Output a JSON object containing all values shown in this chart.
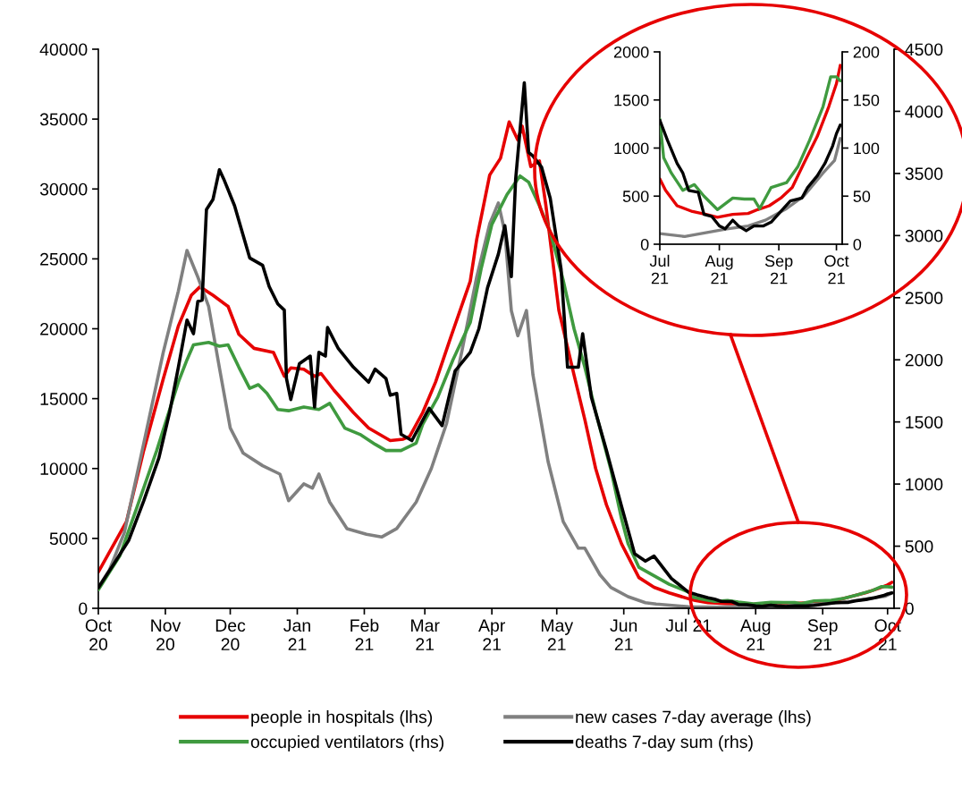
{
  "chart_data": [
    {
      "type": "line",
      "legend": "bottom",
      "xlim": [
        "2020-10-01",
        "2021-10-04"
      ],
      "xticks": [
        {
          "value": "2020-10-01",
          "label": "Oct\n20"
        },
        {
          "value": "2020-11-01",
          "label": "Nov\n20"
        },
        {
          "value": "2020-12-01",
          "label": "Dec\n20"
        },
        {
          "value": "2021-01-01",
          "label": "Jan\n21"
        },
        {
          "value": "2021-02-01",
          "label": "Feb\n21"
        },
        {
          "value": "2021-03-01",
          "label": "Mar\n21"
        },
        {
          "value": "2021-04-01",
          "label": "Apr\n21"
        },
        {
          "value": "2021-05-01",
          "label": "May\n21"
        },
        {
          "value": "2021-06-01",
          "label": "Jun\n21"
        },
        {
          "value": "2021-07-01",
          "label": "Jul 21"
        },
        {
          "value": "2021-08-01",
          "label": "Aug\n21"
        },
        {
          "value": "2021-09-01",
          "label": "Sep\n21"
        },
        {
          "value": "2021-10-01",
          "label": "Oct\n21"
        }
      ],
      "ylim": [
        0,
        40000
      ],
      "yticks": [
        0,
        5000,
        10000,
        15000,
        20000,
        25000,
        30000,
        35000,
        40000
      ],
      "y2lim": [
        0,
        4500
      ],
      "y2ticks": [
        0,
        500,
        1000,
        1500,
        2000,
        2500,
        3000,
        3500,
        4000,
        4500
      ],
      "series": [
        {
          "name": "people in hospitals (lhs)",
          "color": "#e60000",
          "x": [
            "2020-10-01",
            "2020-10-05",
            "2020-10-14",
            "2020-10-22",
            "2020-10-31",
            "2020-11-07",
            "2020-11-13",
            "2020-11-17",
            "2020-11-23",
            "2020-11-30",
            "2020-12-05",
            "2020-12-12",
            "2020-12-21",
            "2020-12-26",
            "2020-12-29",
            "2021-01-04",
            "2021-01-09",
            "2021-01-12",
            "2021-01-18",
            "2021-01-27",
            "2021-02-03",
            "2021-02-13",
            "2021-02-19",
            "2021-02-22",
            "2021-02-28",
            "2021-03-06",
            "2021-03-13",
            "2021-03-22",
            "2021-03-25",
            "2021-03-31",
            "2021-04-05",
            "2021-04-09",
            "2021-04-13",
            "2021-04-15",
            "2021-04-19",
            "2021-04-23",
            "2021-04-26",
            "2021-05-02",
            "2021-05-09",
            "2021-05-14",
            "2021-05-19",
            "2021-05-24",
            "2021-05-31",
            "2021-06-08",
            "2021-06-15",
            "2021-06-22",
            "2021-07-01",
            "2021-07-04",
            "2021-07-10",
            "2021-07-18",
            "2021-07-25",
            "2021-07-31",
            "2021-08-08",
            "2021-08-16",
            "2021-08-21",
            "2021-08-27",
            "2021-09-02",
            "2021-09-08",
            "2021-09-14",
            "2021-09-21",
            "2021-09-27",
            "2021-10-01",
            "2021-10-03"
          ],
          "values": [
            2600,
            3700,
            6200,
            11300,
            16400,
            20200,
            22400,
            23000,
            22400,
            21600,
            19600,
            18600,
            18300,
            16600,
            17200,
            17100,
            16600,
            16800,
            15600,
            14000,
            12900,
            12000,
            12100,
            12300,
            14000,
            16200,
            19400,
            23400,
            26400,
            31000,
            32200,
            34800,
            33500,
            34500,
            31600,
            32000,
            28800,
            21300,
            16700,
            13500,
            10000,
            7400,
            4600,
            2200,
            1500,
            1100,
            680,
            560,
            400,
            340,
            310,
            280,
            310,
            320,
            360,
            400,
            480,
            590,
            840,
            1120,
            1430,
            1670,
            1860
          ]
        },
        {
          "name": "new cases 7-day average (lhs)",
          "color": "#808080",
          "x": [
            "2020-10-01",
            "2020-10-06",
            "2020-10-13",
            "2020-10-22",
            "2020-10-31",
            "2020-11-07",
            "2020-11-11",
            "2020-11-16",
            "2020-11-21",
            "2020-11-26",
            "2020-12-01",
            "2020-12-07",
            "2020-12-16",
            "2020-12-24",
            "2020-12-28",
            "2021-01-04",
            "2021-01-08",
            "2021-01-11",
            "2021-01-16",
            "2021-01-24",
            "2021-02-02",
            "2021-02-09",
            "2021-02-16",
            "2021-02-25",
            "2021-03-04",
            "2021-03-11",
            "2021-03-18",
            "2021-03-25",
            "2021-03-31",
            "2021-04-04",
            "2021-04-07",
            "2021-04-10",
            "2021-04-13",
            "2021-04-17",
            "2021-04-20",
            "2021-04-27",
            "2021-05-04",
            "2021-05-11",
            "2021-05-14",
            "2021-05-21",
            "2021-05-26",
            "2021-06-03",
            "2021-06-11",
            "2021-06-16",
            "2021-07-01",
            "2021-07-14",
            "2021-07-25",
            "2021-08-05",
            "2021-08-16",
            "2021-08-25",
            "2021-09-05",
            "2021-09-14",
            "2021-09-24",
            "2021-09-30",
            "2021-10-03"
          ],
          "values": [
            1500,
            2700,
            5400,
            11800,
            18300,
            22700,
            25600,
            23700,
            21600,
            17200,
            12900,
            11100,
            10200,
            9600,
            7700,
            8900,
            8600,
            9600,
            7600,
            5700,
            5300,
            5100,
            5700,
            7600,
            10000,
            13200,
            18300,
            23700,
            27500,
            29000,
            26900,
            21300,
            19500,
            21300,
            16700,
            10500,
            6200,
            4300,
            4300,
            2400,
            1500,
            830,
            400,
            300,
            110,
            80,
            120,
            160,
            190,
            250,
            370,
            500,
            740,
            870,
            1100
          ]
        },
        {
          "name": "occupied ventilators (rhs)",
          "color": "#3f9a3f",
          "axis": "y2",
          "x": [
            "2020-10-01",
            "2020-10-11",
            "2020-10-19",
            "2020-10-28",
            "2020-11-03",
            "2020-11-07",
            "2020-11-11",
            "2020-11-14",
            "2020-11-21",
            "2020-11-26",
            "2020-11-30",
            "2020-12-05",
            "2020-12-10",
            "2020-12-14",
            "2020-12-18",
            "2020-12-23",
            "2020-12-28",
            "2021-01-04",
            "2021-01-11",
            "2021-01-16",
            "2021-01-23",
            "2021-01-30",
            "2021-02-06",
            "2021-02-11",
            "2021-02-18",
            "2021-02-25",
            "2021-02-28",
            "2021-03-07",
            "2021-03-14",
            "2021-03-22",
            "2021-03-27",
            "2021-04-01",
            "2021-04-08",
            "2021-04-14",
            "2021-04-18",
            "2021-04-23",
            "2021-04-28",
            "2021-05-04",
            "2021-05-09",
            "2021-05-14",
            "2021-05-19",
            "2021-05-26",
            "2021-05-31",
            "2021-06-03",
            "2021-06-08",
            "2021-06-22",
            "2021-07-01",
            "2021-07-03",
            "2021-07-07",
            "2021-07-13",
            "2021-07-19",
            "2021-07-24",
            "2021-07-31",
            "2021-08-08",
            "2021-08-14",
            "2021-08-19",
            "2021-08-22",
            "2021-08-28",
            "2021-09-05",
            "2021-09-11",
            "2021-09-17",
            "2021-09-24",
            "2021-09-28",
            "2021-10-01",
            "2021-10-03"
          ],
          "values": [
            150,
            425,
            820,
            1270,
            1600,
            1820,
            2000,
            2120,
            2140,
            2110,
            2120,
            1940,
            1770,
            1800,
            1730,
            1600,
            1590,
            1620,
            1600,
            1650,
            1450,
            1400,
            1320,
            1270,
            1270,
            1330,
            1480,
            1700,
            2000,
            2300,
            2730,
            3090,
            3330,
            3480,
            3430,
            3240,
            3030,
            2640,
            2250,
            1940,
            1580,
            1120,
            720,
            520,
            330,
            194,
            130,
            90,
            74,
            56,
            62,
            50,
            36,
            48,
            47,
            47,
            37,
            59,
            64,
            81,
            108,
            143,
            174,
            174,
            170
          ]
        },
        {
          "name": "deaths 7-day sum (rhs)",
          "color": "#000000",
          "axis": "y2",
          "x": [
            "2020-10-01",
            "2020-10-09",
            "2020-10-15",
            "2020-10-22",
            "2020-10-29",
            "2020-11-03",
            "2020-11-07",
            "2020-11-11",
            "2020-11-14",
            "2020-11-16",
            "2020-11-18",
            "2020-11-20",
            "2020-11-23",
            "2020-11-26",
            "2020-11-28",
            "2020-12-03",
            "2020-12-06",
            "2020-12-10",
            "2020-12-16",
            "2020-12-19",
            "2020-12-23",
            "2020-12-26",
            "2020-12-27",
            "2020-12-29",
            "2021-01-02",
            "2021-01-07",
            "2021-01-09",
            "2021-01-11",
            "2021-01-14",
            "2021-01-15",
            "2021-01-20",
            "2021-01-27",
            "2021-02-03",
            "2021-02-06",
            "2021-02-11",
            "2021-02-13",
            "2021-02-16",
            "2021-02-18",
            "2021-02-23",
            "2021-03-03",
            "2021-03-09",
            "2021-03-15",
            "2021-03-22",
            "2021-03-26",
            "2021-03-30",
            "2021-04-04",
            "2021-04-07",
            "2021-04-10",
            "2021-04-12",
            "2021-04-16",
            "2021-04-18",
            "2021-04-20",
            "2021-04-24",
            "2021-04-28",
            "2021-05-03",
            "2021-05-06",
            "2021-05-11",
            "2021-05-13",
            "2021-05-17",
            "2021-05-24",
            "2021-05-31",
            "2021-06-06",
            "2021-06-11",
            "2021-06-15",
            "2021-06-23",
            "2021-07-01",
            "2021-07-05",
            "2021-07-10",
            "2021-07-13",
            "2021-07-16",
            "2021-07-21",
            "2021-07-24",
            "2021-07-28",
            "2021-08-01",
            "2021-08-04",
            "2021-08-08",
            "2021-08-11",
            "2021-08-15",
            "2021-08-19",
            "2021-08-24",
            "2021-08-28",
            "2021-09-02",
            "2021-09-07",
            "2021-09-13",
            "2021-09-16",
            "2021-09-21",
            "2021-09-25",
            "2021-09-29",
            "2021-10-01",
            "2021-10-03"
          ],
          "values": [
            166,
            380,
            545,
            865,
            1210,
            1580,
            1940,
            2320,
            2210,
            2470,
            2480,
            3210,
            3290,
            3530,
            3455,
            3240,
            3060,
            2820,
            2760,
            2590,
            2450,
            2400,
            1850,
            1680,
            1970,
            2030,
            1620,
            2060,
            2030,
            2260,
            2090,
            1940,
            1820,
            1925,
            1850,
            1715,
            1730,
            1400,
            1350,
            1610,
            1470,
            1910,
            2060,
            2250,
            2580,
            2850,
            3080,
            2670,
            3455,
            4230,
            3670,
            3640,
            3550,
            3300,
            2730,
            1940,
            1940,
            2210,
            1700,
            1270,
            820,
            440,
            380,
            420,
            240,
            129,
            108,
            84,
            74,
            56,
            54,
            31,
            29,
            19,
            16,
            25,
            19,
            14,
            19,
            19,
            23,
            34,
            45,
            48,
            59,
            71,
            84,
            102,
            115,
            124
          ]
        }
      ]
    },
    {
      "type": "line",
      "xlim": [
        "2021-07-01",
        "2021-10-04"
      ],
      "xticks": [
        {
          "value": "2021-07-01",
          "label": "Jul\n21"
        },
        {
          "value": "2021-08-01",
          "label": "Aug\n21"
        },
        {
          "value": "2021-09-01",
          "label": "Sep\n21"
        },
        {
          "value": "2021-10-01",
          "label": "Oct\n21"
        }
      ],
      "ylim": [
        0,
        2000
      ],
      "yticks": [
        0,
        500,
        1000,
        1500,
        2000
      ],
      "y2lim": [
        0,
        200
      ],
      "y2ticks": [
        0,
        50,
        100,
        150,
        200
      ],
      "series": [
        {
          "color": "#e60000",
          "x": [
            "2021-07-01",
            "2021-07-04",
            "2021-07-10",
            "2021-07-18",
            "2021-07-25",
            "2021-07-31",
            "2021-08-08",
            "2021-08-16",
            "2021-08-21",
            "2021-08-27",
            "2021-09-02",
            "2021-09-08",
            "2021-09-14",
            "2021-09-21",
            "2021-09-27",
            "2021-10-01",
            "2021-10-03"
          ],
          "values": [
            680,
            560,
            400,
            340,
            310,
            280,
            310,
            320,
            360,
            400,
            480,
            590,
            840,
            1120,
            1430,
            1670,
            1860
          ]
        },
        {
          "color": "#808080",
          "x": [
            "2021-07-01",
            "2021-07-14",
            "2021-07-25",
            "2021-08-05",
            "2021-08-16",
            "2021-08-25",
            "2021-09-05",
            "2021-09-14",
            "2021-09-24",
            "2021-09-30",
            "2021-10-03"
          ],
          "values": [
            110,
            80,
            120,
            160,
            190,
            250,
            370,
            500,
            740,
            870,
            1100
          ]
        },
        {
          "color": "#3f9a3f",
          "axis": "y2",
          "x": [
            "2021-07-01",
            "2021-07-03",
            "2021-07-07",
            "2021-07-13",
            "2021-07-19",
            "2021-07-24",
            "2021-07-31",
            "2021-08-08",
            "2021-08-14",
            "2021-08-19",
            "2021-08-22",
            "2021-08-28",
            "2021-09-05",
            "2021-09-11",
            "2021-09-17",
            "2021-09-24",
            "2021-09-28",
            "2021-10-01",
            "2021-10-03"
          ],
          "values": [
            130,
            90,
            74,
            56,
            62,
            50,
            36,
            48,
            47,
            47,
            37,
            59,
            64,
            81,
            108,
            143,
            174,
            174,
            170
          ]
        },
        {
          "color": "#000000",
          "axis": "y2",
          "x": [
            "2021-07-01",
            "2021-07-05",
            "2021-07-10",
            "2021-07-13",
            "2021-07-16",
            "2021-07-21",
            "2021-07-24",
            "2021-07-28",
            "2021-08-01",
            "2021-08-04",
            "2021-08-08",
            "2021-08-11",
            "2021-08-15",
            "2021-08-19",
            "2021-08-24",
            "2021-08-28",
            "2021-09-02",
            "2021-09-07",
            "2021-09-13",
            "2021-09-16",
            "2021-09-21",
            "2021-09-25",
            "2021-09-29",
            "2021-10-01",
            "2021-10-03"
          ],
          "values": [
            129,
            108,
            84,
            74,
            56,
            54,
            31,
            29,
            19,
            16,
            25,
            19,
            14,
            19,
            19,
            23,
            34,
            45,
            48,
            59,
            71,
            84,
            102,
            115,
            124
          ]
        }
      ]
    }
  ]
}
